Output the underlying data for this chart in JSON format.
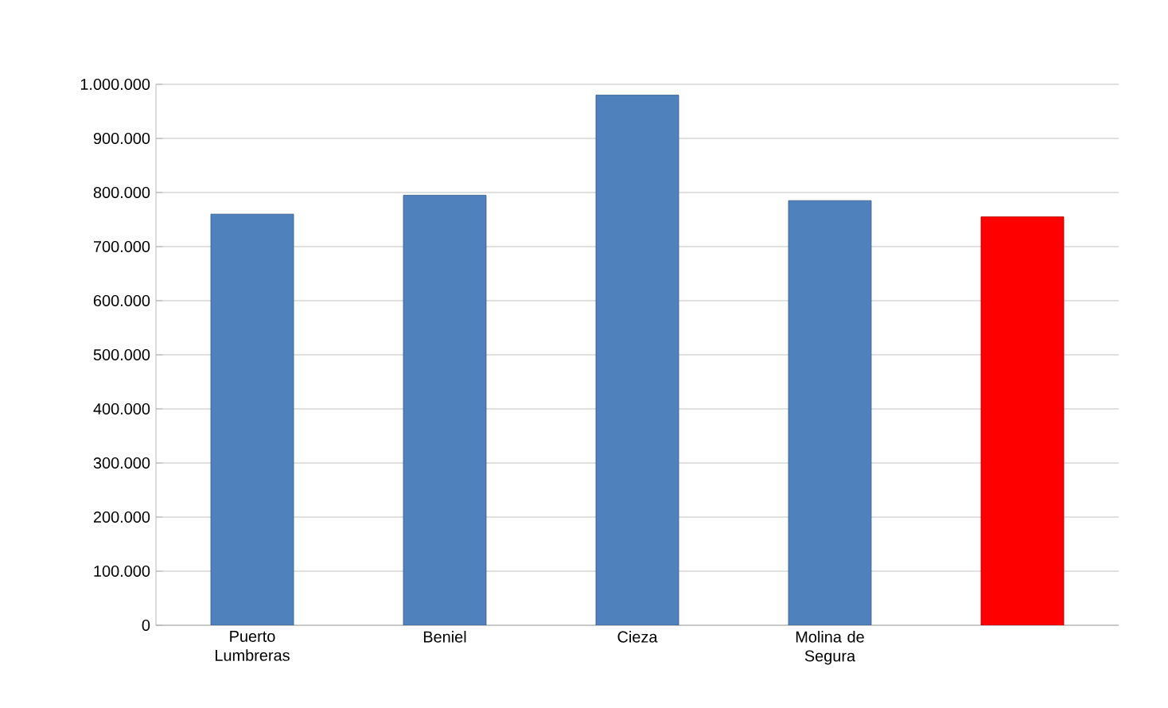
{
  "chart_data": {
    "type": "bar",
    "categories": [
      "Puerto Lumbreras",
      "Beniel",
      "Cieza",
      "Molina de Segura",
      null
    ],
    "values": [
      760000,
      795000,
      980000,
      785000,
      755000
    ],
    "colors": [
      "#4f81bd",
      "#4f81bd",
      "#4f81bd",
      "#4f81bd",
      "#ff0000"
    ],
    "ylim": [
      0,
      1000000
    ],
    "yticks": [
      {
        "value": 0,
        "label": "0"
      },
      {
        "value": 100000,
        "label": "100.000"
      },
      {
        "value": 200000,
        "label": "200.000"
      },
      {
        "value": 300000,
        "label": "300.000"
      },
      {
        "value": 400000,
        "label": "400.000"
      },
      {
        "value": 500000,
        "label": "500.000"
      },
      {
        "value": 600000,
        "label": "600.000"
      },
      {
        "value": 700000,
        "label": "700.000"
      },
      {
        "value": 800000,
        "label": "800.000"
      },
      {
        "value": 900000,
        "label": "900.000"
      },
      {
        "value": 1000000,
        "label": "1.000.000"
      }
    ],
    "grid": "y"
  }
}
